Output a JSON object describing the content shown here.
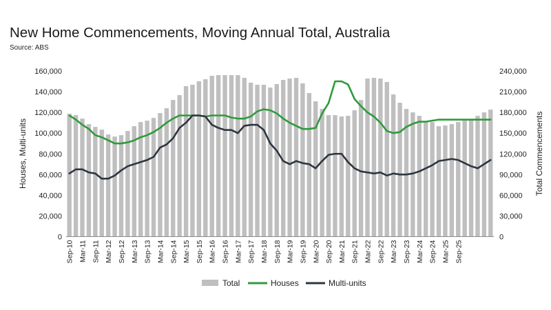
{
  "chart_data": {
    "type": "bar+line",
    "title": "New Home Commencements, Moving Annual Total, Australia",
    "subtitle": "Source: ABS",
    "ylabel_left": "Houses, Multi-units",
    "ylabel_right": "Total Commencements",
    "ylim_left": [
      0,
      160000
    ],
    "ylim_right": [
      0,
      240000
    ],
    "yticks_left": [
      "0",
      "20,000",
      "40,000",
      "60,000",
      "80,000",
      "100,000",
      "120,000",
      "140,000",
      "160,000"
    ],
    "yticks_right": [
      "0",
      "30,000",
      "60,000",
      "90,000",
      "120,000",
      "150,000",
      "180,000",
      "210,000",
      "240,000"
    ],
    "x_tick_labels": [
      "Sep-10",
      "Mar-11",
      "Sep-11",
      "Mar-12",
      "Sep-12",
      "Mar-13",
      "Sep-13",
      "Mar-14",
      "Sep-14",
      "Mar-15",
      "Sep-15",
      "Mar-16",
      "Sep-16",
      "Mar-17",
      "Sep-17",
      "Mar-18",
      "Sep-18",
      "Mar-19",
      "Sep-19",
      "Mar-20",
      "Sep-20",
      "Mar-21",
      "Sep-21",
      "Mar-22",
      "Sep-22",
      "Mar-23",
      "Sep-23",
      "Mar-24",
      "Sep-24",
      "Mar-25",
      "Sep-25"
    ],
    "legend": [
      "Total",
      "Houses",
      "Multi-units"
    ],
    "legend_position": "bottom",
    "colors": {
      "Total": "#bfbfbf",
      "Houses": "#2e9a3a",
      "Multi-units": "#2d3640"
    },
    "series": [
      {
        "name": "Total",
        "axis": "right",
        "type": "bar",
        "values": [
          178000,
          176000,
          171000,
          163000,
          159000,
          155000,
          148000,
          145000,
          147000,
          153000,
          160000,
          166000,
          168000,
          172000,
          179000,
          186000,
          198000,
          205000,
          218000,
          220000,
          225000,
          228000,
          233000,
          234000,
          234000,
          234000,
          234000,
          230000,
          223000,
          220000,
          220000,
          216000,
          221000,
          227000,
          229000,
          230000,
          222000,
          208000,
          196000,
          185000,
          176000,
          176000,
          174000,
          175000,
          183000,
          198000,
          229000,
          230000,
          229000,
          224000,
          206000,
          194000,
          185000,
          180000,
          175000,
          167000,
          166000,
          160000,
          161000,
          163000,
          166000,
          168000,
          170000,
          175000,
          180000,
          184000
        ]
      },
      {
        "name": "Houses",
        "axis": "left",
        "type": "line",
        "values": [
          117000,
          113000,
          108000,
          104000,
          98000,
          96000,
          93000,
          90000,
          90000,
          91000,
          93000,
          96000,
          98000,
          101000,
          105000,
          110000,
          114000,
          117000,
          117000,
          117000,
          117000,
          116000,
          117000,
          117000,
          117000,
          115000,
          114000,
          114000,
          116000,
          121000,
          123000,
          122000,
          119000,
          114000,
          110000,
          107000,
          104000,
          104000,
          105000,
          119000,
          129000,
          150000,
          150000,
          147000,
          133000,
          126000,
          120000,
          116000,
          110000,
          102000,
          100000,
          101000,
          106000,
          109000,
          111000,
          111000,
          112000,
          113000,
          113000,
          113000,
          113000,
          113000,
          113000,
          113000,
          113000,
          113000
        ]
      },
      {
        "name": "Multi-units",
        "axis": "left",
        "type": "line",
        "values": [
          61000,
          65000,
          65000,
          62000,
          61000,
          56000,
          56000,
          59000,
          64000,
          68000,
          70000,
          72000,
          74000,
          77000,
          86000,
          89000,
          95000,
          105000,
          110000,
          117000,
          117000,
          116000,
          108000,
          105000,
          103000,
          103000,
          100000,
          107000,
          108000,
          108000,
          103000,
          90000,
          83000,
          73000,
          70000,
          73000,
          71000,
          70000,
          66000,
          73000,
          79000,
          80000,
          80000,
          72000,
          66000,
          63000,
          62000,
          61000,
          62000,
          59000,
          61000,
          60000,
          60000,
          61000,
          63000,
          66000,
          69000,
          73000,
          74000,
          75000,
          74000,
          71000,
          68000,
          66000,
          70000,
          74000
        ]
      }
    ]
  }
}
